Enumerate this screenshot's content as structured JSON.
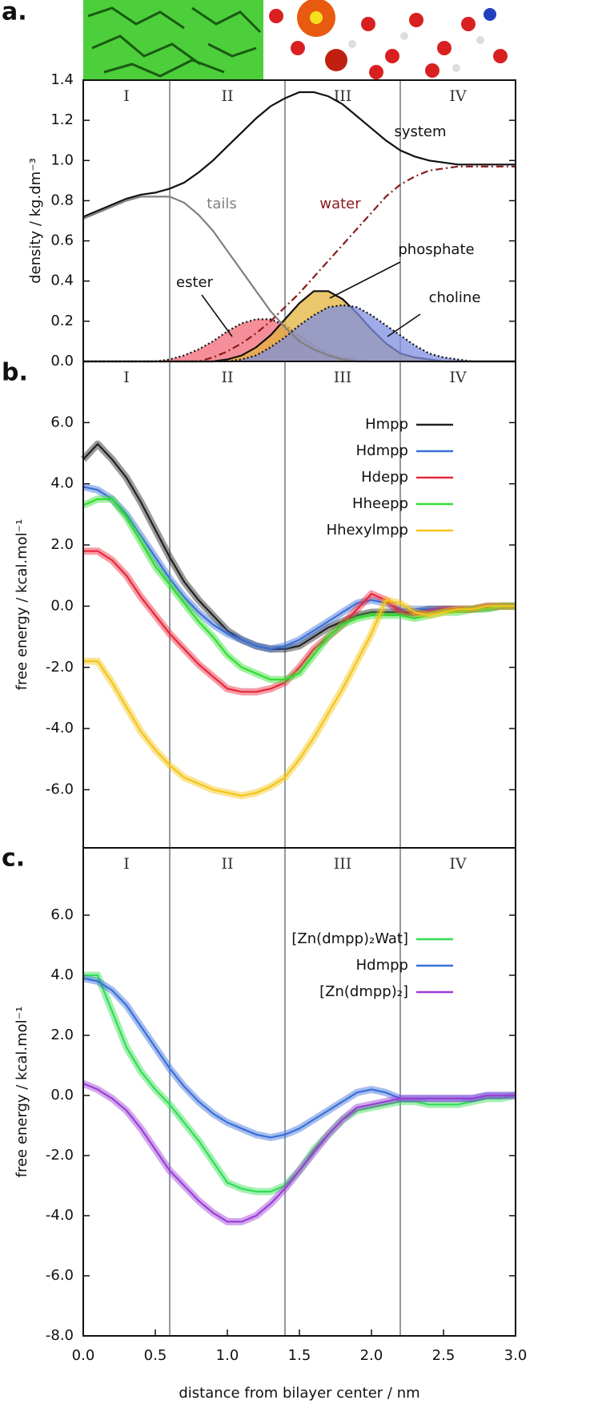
{
  "chart_data": [
    {
      "type": "line",
      "panel": "a.",
      "ylabel": "density / kg.dm⁻³",
      "regions": [
        "I",
        "II",
        "III",
        "IV"
      ],
      "region_bounds": [
        0.6,
        1.4,
        2.2
      ],
      "xlim": [
        0,
        3.0
      ],
      "ylim": [
        0,
        1.4
      ],
      "yticks": [
        {
          "value": 0,
          "label": "0.0"
        },
        {
          "value": 0.2,
          "label": "0.2"
        },
        {
          "value": 0.4,
          "label": "0.4"
        },
        {
          "value": 0.6,
          "label": "0.6"
        },
        {
          "value": 0.8,
          "label": "0.8"
        },
        {
          "value": 1.0,
          "label": "1.0"
        },
        {
          "value": 1.2,
          "label": "1.2"
        },
        {
          "value": 1.4,
          "label": "1.4"
        }
      ],
      "x": [
        0,
        0.1,
        0.2,
        0.3,
        0.4,
        0.5,
        0.6,
        0.7,
        0.8,
        0.9,
        1.0,
        1.1,
        1.2,
        1.3,
        1.4,
        1.5,
        1.6,
        1.7,
        1.8,
        1.9,
        2.0,
        2.1,
        2.2,
        2.3,
        2.4,
        2.5,
        2.6,
        2.7,
        2.8,
        2.9,
        3.0
      ],
      "legend": false,
      "series": [
        {
          "name": "ester",
          "color": "#f06a78",
          "fill": true,
          "style": "dotted",
          "values": [
            0,
            0,
            0,
            0,
            0,
            0,
            0.01,
            0.03,
            0.06,
            0.1,
            0.15,
            0.19,
            0.21,
            0.21,
            0.18,
            0.13,
            0.08,
            0.04,
            0.02,
            0.01,
            0,
            0,
            0,
            0,
            0,
            0,
            0,
            0,
            0,
            0,
            0
          ]
        },
        {
          "name": "phosphate",
          "color": "#e3b33c",
          "fill": true,
          "style": "solid",
          "values": [
            0,
            0,
            0,
            0,
            0,
            0,
            0,
            0,
            0,
            0,
            0.01,
            0.03,
            0.07,
            0.13,
            0.21,
            0.29,
            0.35,
            0.35,
            0.31,
            0.24,
            0.16,
            0.09,
            0.04,
            0.02,
            0.01,
            0,
            0,
            0,
            0,
            0,
            0
          ]
        },
        {
          "name": "choline",
          "color": "#7f8fe0",
          "fill": true,
          "style": "dotted",
          "values": [
            0,
            0,
            0,
            0,
            0,
            0,
            0,
            0,
            0,
            0,
            0,
            0.01,
            0.03,
            0.07,
            0.12,
            0.18,
            0.23,
            0.27,
            0.28,
            0.27,
            0.23,
            0.18,
            0.13,
            0.08,
            0.04,
            0.02,
            0.01,
            0,
            0,
            0,
            0
          ]
        },
        {
          "name": "tails",
          "color": "#808080",
          "style": "solid",
          "values": [
            0.71,
            0.74,
            0.77,
            0.8,
            0.82,
            0.82,
            0.82,
            0.79,
            0.73,
            0.65,
            0.55,
            0.45,
            0.35,
            0.25,
            0.17,
            0.1,
            0.06,
            0.03,
            0.01,
            0,
            0,
            0,
            0,
            0,
            0,
            0,
            0,
            0,
            0,
            0,
            0
          ]
        },
        {
          "name": "water",
          "color": "#8b1a1a",
          "style": "dashdot",
          "values": [
            0,
            0,
            0,
            0,
            0,
            0,
            0,
            0,
            0,
            0.02,
            0.05,
            0.09,
            0.14,
            0.2,
            0.27,
            0.34,
            0.42,
            0.5,
            0.58,
            0.66,
            0.74,
            0.82,
            0.88,
            0.92,
            0.95,
            0.96,
            0.97,
            0.97,
            0.97,
            0.97,
            0.97
          ]
        },
        {
          "name": "system",
          "color": "#111111",
          "style": "solid",
          "values": [
            0.72,
            0.75,
            0.78,
            0.81,
            0.83,
            0.84,
            0.86,
            0.89,
            0.94,
            1.0,
            1.07,
            1.14,
            1.21,
            1.27,
            1.31,
            1.34,
            1.34,
            1.32,
            1.28,
            1.22,
            1.16,
            1.1,
            1.05,
            1.02,
            1.0,
            0.99,
            0.98,
            0.98,
            0.98,
            0.98,
            0.98
          ]
        }
      ]
    },
    {
      "type": "line",
      "panel": "b.",
      "ylabel": "free energy / kcal.mol⁻¹",
      "regions": [
        "I",
        "II",
        "III",
        "IV"
      ],
      "region_bounds": [
        0.6,
        1.4,
        2.2
      ],
      "xlim": [
        0,
        3.0
      ],
      "ylim": [
        -7.9,
        8.0
      ],
      "yticks": [
        {
          "value": -6,
          "label": "-6.0"
        },
        {
          "value": -4,
          "label": "-4.0"
        },
        {
          "value": -2,
          "label": "-2.0"
        },
        {
          "value": 0,
          "label": "0.0"
        },
        {
          "value": 2,
          "label": "2.0"
        },
        {
          "value": 4,
          "label": "4.0"
        },
        {
          "value": 6,
          "label": "6.0"
        }
      ],
      "x": [
        0,
        0.1,
        0.2,
        0.3,
        0.4,
        0.5,
        0.6,
        0.7,
        0.8,
        0.9,
        1.0,
        1.1,
        1.2,
        1.3,
        1.4,
        1.5,
        1.6,
        1.7,
        1.8,
        1.9,
        2.0,
        2.1,
        2.2,
        2.3,
        2.4,
        2.5,
        2.6,
        2.7,
        2.8,
        2.9,
        3.0
      ],
      "legend": "upper right",
      "band": true,
      "series": [
        {
          "name": "Hmpp",
          "color": "#222222",
          "values": [
            4.8,
            5.3,
            4.8,
            4.2,
            3.4,
            2.5,
            1.6,
            0.8,
            0.2,
            -0.3,
            -0.8,
            -1.1,
            -1.3,
            -1.4,
            -1.4,
            -1.3,
            -1.0,
            -0.7,
            -0.5,
            -0.3,
            -0.2,
            -0.2,
            -0.2,
            -0.2,
            -0.1,
            -0.1,
            -0.1,
            -0.1,
            -0.05,
            0,
            0
          ]
        },
        {
          "name": "Hdmpp",
          "color": "#3a6fd8",
          "values": [
            3.9,
            3.8,
            3.5,
            3.0,
            2.3,
            1.6,
            0.9,
            0.3,
            -0.2,
            -0.6,
            -0.9,
            -1.1,
            -1.3,
            -1.4,
            -1.3,
            -1.1,
            -0.8,
            -0.5,
            -0.2,
            0.1,
            0.2,
            0.1,
            -0.1,
            -0.1,
            -0.1,
            -0.1,
            -0.1,
            -0.1,
            0,
            0,
            0
          ]
        },
        {
          "name": "Hdepp",
          "color": "#e8283c",
          "values": [
            1.8,
            1.8,
            1.5,
            1.0,
            0.3,
            -0.3,
            -0.9,
            -1.4,
            -1.9,
            -2.3,
            -2.7,
            -2.8,
            -2.8,
            -2.7,
            -2.5,
            -2.0,
            -1.4,
            -1.0,
            -0.6,
            -0.1,
            0.4,
            0.2,
            -0.2,
            -0.3,
            -0.2,
            -0.1,
            -0.1,
            -0.1,
            0,
            0,
            0
          ]
        },
        {
          "name": "Hheepp",
          "color": "#33dd33",
          "values": [
            3.3,
            3.5,
            3.5,
            2.9,
            2.1,
            1.3,
            0.7,
            0.1,
            -0.5,
            -1.0,
            -1.6,
            -2.0,
            -2.2,
            -2.4,
            -2.4,
            -2.2,
            -1.6,
            -1.0,
            -0.6,
            -0.4,
            -0.3,
            -0.3,
            -0.3,
            -0.4,
            -0.3,
            -0.2,
            -0.2,
            -0.1,
            -0.1,
            0,
            0
          ]
        },
        {
          "name": "Hhexylmpp",
          "color": "#f5c518",
          "values": [
            -1.8,
            -1.8,
            -2.5,
            -3.3,
            -4.1,
            -4.7,
            -5.2,
            -5.6,
            -5.8,
            -6.0,
            -6.1,
            -6.2,
            -6.1,
            -5.9,
            -5.6,
            -5.0,
            -4.3,
            -3.5,
            -2.7,
            -1.8,
            -0.9,
            0.2,
            0.1,
            -0.2,
            -0.3,
            -0.2,
            -0.1,
            -0.1,
            0,
            0,
            0
          ]
        }
      ]
    },
    {
      "type": "line",
      "panel": "c.",
      "ylabel": "free energy / kcal.mol⁻¹",
      "xlabel": "distance from bilayer center / nm",
      "regions": [
        "I",
        "II",
        "III",
        "IV"
      ],
      "region_bounds": [
        0.6,
        1.4,
        2.2
      ],
      "xlim": [
        0,
        3.0
      ],
      "ylim": [
        -8.0,
        8.24
      ],
      "xticks": [
        {
          "value": 0,
          "label": "0.0"
        },
        {
          "value": 0.5,
          "label": "0.5"
        },
        {
          "value": 1.0,
          "label": "1.0"
        },
        {
          "value": 1.5,
          "label": "1.5"
        },
        {
          "value": 2.0,
          "label": "2.0"
        },
        {
          "value": 2.5,
          "label": "2.5"
        },
        {
          "value": 3.0,
          "label": "3.0"
        }
      ],
      "yticks": [
        {
          "value": -8,
          "label": "-8.0"
        },
        {
          "value": -6,
          "label": "-6.0"
        },
        {
          "value": -4,
          "label": "-4.0"
        },
        {
          "value": -2,
          "label": "-2.0"
        },
        {
          "value": 0,
          "label": "0.0"
        },
        {
          "value": 2,
          "label": "2.0"
        },
        {
          "value": 4,
          "label": "4.0"
        },
        {
          "value": 6,
          "label": "6.0"
        }
      ],
      "x": [
        0,
        0.1,
        0.2,
        0.3,
        0.4,
        0.5,
        0.6,
        0.7,
        0.8,
        0.9,
        1.0,
        1.1,
        1.2,
        1.3,
        1.4,
        1.5,
        1.6,
        1.7,
        1.8,
        1.9,
        2.0,
        2.1,
        2.2,
        2.3,
        2.4,
        2.5,
        2.6,
        2.7,
        2.8,
        2.9,
        3.0
      ],
      "legend": "upper right",
      "band": true,
      "series": [
        {
          "name": "[Zn(dmpp)₂Wat]",
          "color": "#33dd55",
          "values": [
            4.0,
            4.0,
            2.8,
            1.6,
            0.8,
            0.2,
            -0.3,
            -0.9,
            -1.5,
            -2.2,
            -2.9,
            -3.1,
            -3.2,
            -3.2,
            -3.0,
            -2.5,
            -1.8,
            -1.3,
            -0.8,
            -0.5,
            -0.4,
            -0.3,
            -0.2,
            -0.2,
            -0.3,
            -0.3,
            -0.3,
            -0.2,
            -0.1,
            -0.1,
            0
          ]
        },
        {
          "name": "Hdmpp",
          "color": "#3a6fd8",
          "values": [
            3.9,
            3.8,
            3.5,
            3.0,
            2.3,
            1.6,
            0.9,
            0.3,
            -0.2,
            -0.6,
            -0.9,
            -1.1,
            -1.3,
            -1.4,
            -1.3,
            -1.1,
            -0.8,
            -0.5,
            -0.2,
            0.1,
            0.2,
            0.1,
            -0.1,
            -0.1,
            -0.1,
            -0.1,
            -0.1,
            -0.1,
            0,
            0,
            0
          ]
        },
        {
          "name": "[Zn(dmpp)₂]",
          "color": "#9b3fd6",
          "values": [
            0.4,
            0.2,
            -0.1,
            -0.5,
            -1.1,
            -1.8,
            -2.5,
            -3.0,
            -3.5,
            -3.9,
            -4.2,
            -4.2,
            -4.0,
            -3.6,
            -3.1,
            -2.5,
            -1.9,
            -1.3,
            -0.8,
            -0.4,
            -0.3,
            -0.2,
            -0.1,
            -0.1,
            -0.1,
            -0.1,
            -0.1,
            -0.1,
            0,
            0,
            0
          ]
        }
      ]
    }
  ]
}
